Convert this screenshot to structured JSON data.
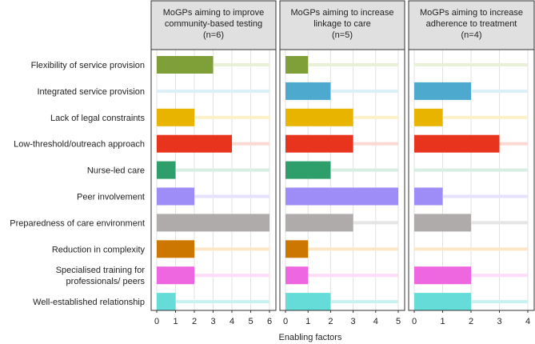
{
  "chart_data": [
    {
      "type": "bar",
      "orientation": "horizontal",
      "title": "MoGPs aiming to improve community-based testing (n=6)",
      "title_lines": [
        "MoGPs aiming to improve",
        "community-based testing",
        "(n=6)"
      ],
      "xlim": [
        0,
        6
      ],
      "xticks": [
        "0",
        "1",
        "2",
        "3",
        "4",
        "5",
        "6"
      ],
      "values": [
        3,
        0,
        2,
        4,
        1,
        2,
        6,
        2,
        2,
        1
      ]
    },
    {
      "type": "bar",
      "orientation": "horizontal",
      "title": "MoGPs aiming to increase linkage to care (n=5)",
      "title_lines": [
        "MoGPs aiming to increase",
        "linkage to care",
        "(n=5)"
      ],
      "xlim": [
        0,
        5
      ],
      "xticks": [
        "0",
        "1",
        "2",
        "3",
        "4",
        "5"
      ],
      "values": [
        1,
        2,
        3,
        3,
        2,
        5,
        3,
        1,
        1,
        2
      ]
    },
    {
      "type": "bar",
      "orientation": "horizontal",
      "title": "MoGPs aiming to increase adherence to treatment (n=4)",
      "title_lines": [
        "MoGPs aiming to increase",
        "adherence to treatment",
        "(n=4)"
      ],
      "xlim": [
        0,
        4
      ],
      "xticks": [
        "0",
        "1",
        "2",
        "3",
        "4"
      ],
      "values": [
        0,
        2,
        1,
        3,
        0,
        1,
        2,
        0,
        2,
        2
      ]
    }
  ],
  "categories": [
    [
      "Flexibility of service provision"
    ],
    [
      "Integrated service provision"
    ],
    [
      "Lack of legal constraints"
    ],
    [
      "Low-threshold/outreach approach"
    ],
    [
      "Nurse-led care"
    ],
    [
      "Peer involvement"
    ],
    [
      "Preparedness of care environment"
    ],
    [
      "Reduction in complexity"
    ],
    [
      "Specialised training for",
      "professionals/ peers"
    ],
    [
      "Well-established relationship"
    ]
  ],
  "colors": [
    "#7f9f38",
    "#4ea9cf",
    "#e8b400",
    "#e8341c",
    "#2e9e6a",
    "#9e8cf7",
    "#b0abab",
    "#cc7800",
    "#ee66e0",
    "#66dcd8"
  ],
  "track_colors": [
    "#e8f0d8",
    "#dceff7",
    "#fdf1c8",
    "#fbd8d2",
    "#d6efe2",
    "#e6e1fd",
    "#e6e4e4",
    "#fde6c6",
    "#fcdcf8",
    "#c6f3f1"
  ],
  "xlabel": "Enabling factors"
}
